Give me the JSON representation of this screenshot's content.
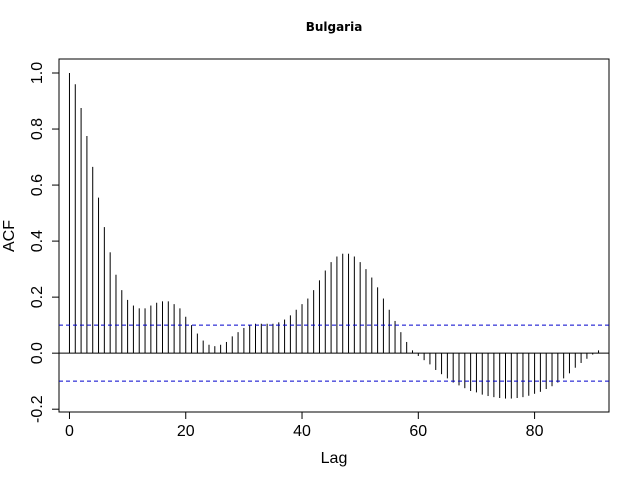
{
  "chart_data": {
    "type": "bar",
    "title": "Bulgaria",
    "xlabel": "Lag",
    "ylabel": "ACF",
    "xlim": [
      -1.8,
      92.8
    ],
    "ylim": [
      -0.21,
      1.05
    ],
    "x_ticks": [
      0,
      20,
      40,
      60,
      80
    ],
    "y_ticks": [
      -0.2,
      0.0,
      0.2,
      0.4,
      0.6,
      0.8,
      1.0
    ],
    "y_tick_labels": [
      "-0.2",
      "0.0",
      "0.2",
      "0.4",
      "0.6",
      "0.8",
      "1.0"
    ],
    "confidence_bounds": [
      0.1,
      -0.1
    ],
    "confidence_color": "#0000cc",
    "bar_color": "#000000",
    "grid": false,
    "lags": [
      0,
      1,
      2,
      3,
      4,
      5,
      6,
      7,
      8,
      9,
      10,
      11,
      12,
      13,
      14,
      15,
      16,
      17,
      18,
      19,
      20,
      21,
      22,
      23,
      24,
      25,
      26,
      27,
      28,
      29,
      30,
      31,
      32,
      33,
      34,
      35,
      36,
      37,
      38,
      39,
      40,
      41,
      42,
      43,
      44,
      45,
      46,
      47,
      48,
      49,
      50,
      51,
      52,
      53,
      54,
      55,
      56,
      57,
      58,
      59,
      60,
      61,
      62,
      63,
      64,
      65,
      66,
      67,
      68,
      69,
      70,
      71,
      72,
      73,
      74,
      75,
      76,
      77,
      78,
      79,
      80,
      81,
      82,
      83,
      84,
      85,
      86,
      87,
      88,
      89,
      90,
      91
    ],
    "values": [
      1.0,
      0.96,
      0.875,
      0.775,
      0.665,
      0.555,
      0.45,
      0.36,
      0.28,
      0.225,
      0.19,
      0.17,
      0.16,
      0.16,
      0.17,
      0.18,
      0.185,
      0.185,
      0.175,
      0.16,
      0.13,
      0.1,
      0.07,
      0.045,
      0.03,
      0.025,
      0.03,
      0.04,
      0.06,
      0.075,
      0.09,
      0.1,
      0.105,
      0.105,
      0.105,
      0.105,
      0.11,
      0.12,
      0.135,
      0.155,
      0.175,
      0.195,
      0.225,
      0.26,
      0.295,
      0.325,
      0.345,
      0.355,
      0.355,
      0.345,
      0.325,
      0.3,
      0.27,
      0.235,
      0.195,
      0.155,
      0.115,
      0.075,
      0.04,
      0.01,
      -0.01,
      -0.025,
      -0.04,
      -0.06,
      -0.075,
      -0.09,
      -0.105,
      -0.115,
      -0.125,
      -0.135,
      -0.14,
      -0.148,
      -0.153,
      -0.157,
      -0.16,
      -0.162,
      -0.162,
      -0.16,
      -0.157,
      -0.152,
      -0.145,
      -0.138,
      -0.128,
      -0.118,
      -0.105,
      -0.09,
      -0.072,
      -0.052,
      -0.035,
      -0.02,
      -0.005,
      0.01
    ]
  }
}
